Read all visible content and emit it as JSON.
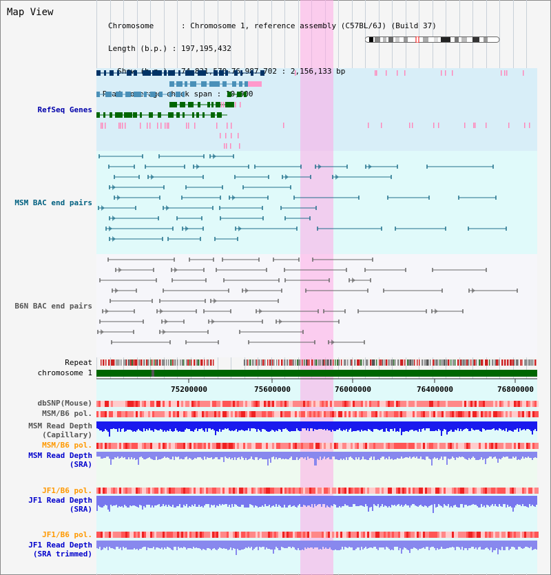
{
  "header": {
    "title": "Map View",
    "chromosome_key": "Chromosome      ",
    "chromosome_value": ": Chromosome 1, reference assembly (C57BL/6J) (Build 37)",
    "length_key": "Length (b.p.) ",
    "length_value": ": 197,195,432",
    "show_key": "  Show (b.p.) ",
    "show_value": ": 74,831,570-76,987,702 : 2,156,133 bp",
    "coverage_key": "Read coverage check span",
    "coverage_value": ": 10,000"
  },
  "tracks": {
    "refseq_genes": "RefSeq Genes",
    "msm_bac": "MSM BAC end pairs",
    "b6n_bac": "B6N BAC end pairs",
    "repeat": "Repeat",
    "chromosome": "chromosome 1",
    "dbsnp": "dbSNP(Mouse)",
    "msm_b6_pol_1": "MSM/B6 pol.",
    "msm_read_depth_cap_1": "MSM Read Depth",
    "msm_read_depth_cap_2": "(Capillary)",
    "msm_b6_pol_2": "MSM/B6 pol.",
    "msm_read_depth_sra_1": "MSM Read Depth",
    "msm_read_depth_sra_2": "(SRA)",
    "jf1_b6_pol_1": "JF1/B6 pol.",
    "jf1_read_depth_sra_1": "JF1 Read Depth",
    "jf1_read_depth_sra_2": "(SRA)",
    "jf1_b6_pol_2": "JF1/B6 pol.",
    "jf1_read_depth_trim_1": "JF1 Read Depth",
    "jf1_read_depth_trim_2": "(SRA trimmed)"
  },
  "axis": {
    "ticks": [
      "75200000",
      "75600000",
      "76000000",
      "76400000",
      "76800000"
    ]
  },
  "colors": {
    "refseq_label": "#0000aa",
    "msm_label": "#006080",
    "b6n_label": "#555555",
    "pol_label": "#ff9900",
    "depth_label": "#0000cc",
    "refseq_bg": "#d8eef8",
    "msm_bg": "#e0fafa",
    "b6n_bg": "#f6f6fa",
    "gene_navy": "#003366",
    "gene_teal": "#4a90b8",
    "gene_green": "#006600",
    "pink_mark": "#ff88bb",
    "chromosome_bar": "#006600"
  }
}
